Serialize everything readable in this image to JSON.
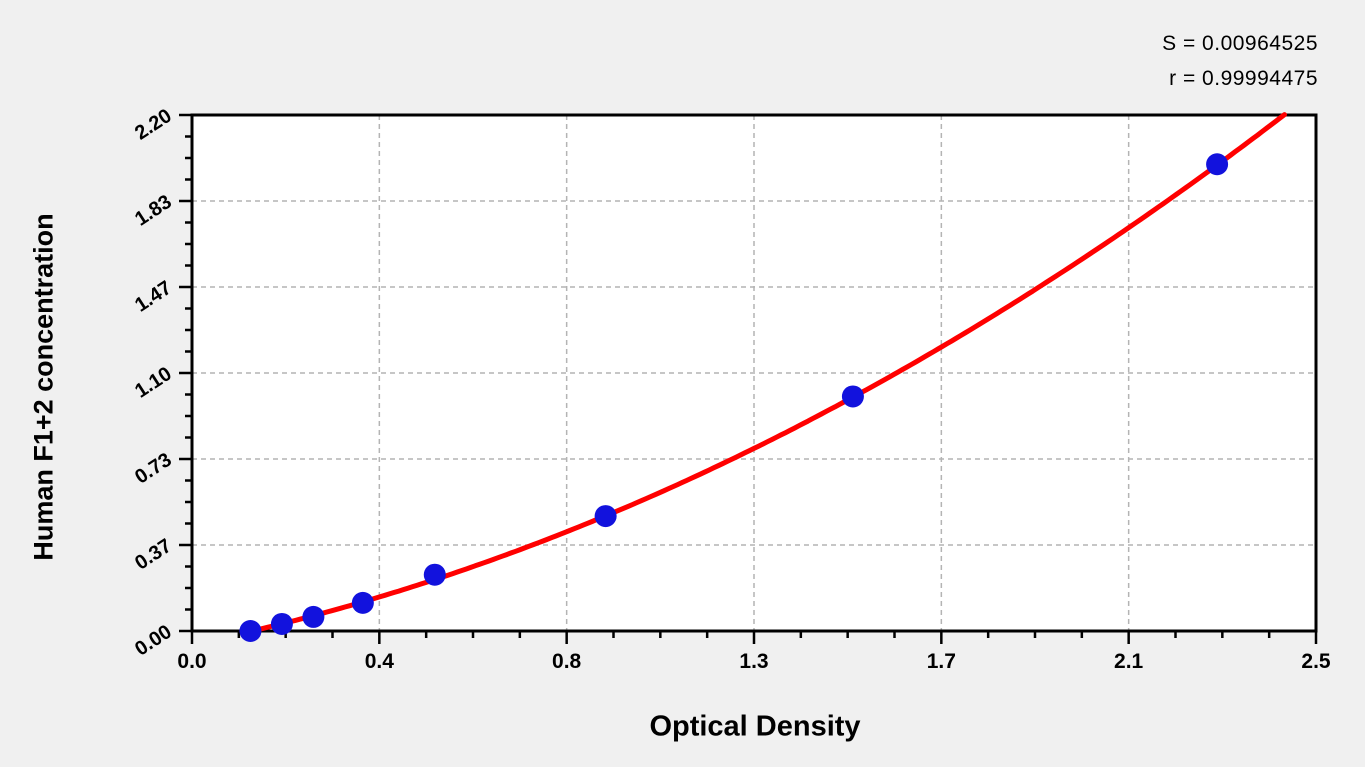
{
  "window": {
    "background_color": "#f0f0f0",
    "plot_background_color": "#ffffff"
  },
  "stats_box": {
    "s_line": "S = 0.00964525",
    "r_line": "r = 0.99994475"
  },
  "chart_data": {
    "type": "scatter",
    "title": "",
    "xlabel": "Optical Density",
    "ylabel": "Human F1+2 concentration",
    "xlim": [
      0,
      2.5
    ],
    "ylim": [
      0,
      2.2
    ],
    "x_ticks": {
      "values": [
        0,
        0.41667,
        0.83333,
        1.25,
        1.66667,
        2.08333,
        2.5
      ],
      "labels": [
        "0.0",
        "0.4",
        "0.8",
        "1.3",
        "1.7",
        "2.1",
        "2.5"
      ]
    },
    "y_ticks": {
      "values": [
        0,
        0.36667,
        0.73333,
        1.1,
        1.46667,
        1.83333,
        2.2
      ],
      "labels": [
        "0.00",
        "0.37",
        "0.73",
        "1.10",
        "1.47",
        "1.83",
        "2.20"
      ]
    },
    "minor_divisions_per_major": 4,
    "grid": {
      "show": true,
      "style": "dashed",
      "color": "#b4b4b4",
      "at": "major-ticks"
    },
    "legend_position": "none",
    "series": [
      {
        "name": "standards",
        "marker": "circle",
        "color": "#1212dd",
        "x": [
          0.13,
          0.2,
          0.27,
          0.38,
          0.54,
          0.92,
          1.47,
          2.28
        ],
        "y": [
          0.0,
          0.03,
          0.06,
          0.12,
          0.24,
          0.49,
          1.0,
          1.99
        ]
      }
    ],
    "fit_curve": {
      "name": "regression-fit",
      "color": "#ff0000",
      "model": "y = a + b*x + c*x^2",
      "a": -0.0564,
      "b": 0.391,
      "c": 0.2215,
      "x_start": 0.13,
      "x_end": 2.44,
      "y_clip_max": 2.212
    },
    "stats": {
      "S": 0.00964525,
      "r": 0.99994475
    }
  }
}
